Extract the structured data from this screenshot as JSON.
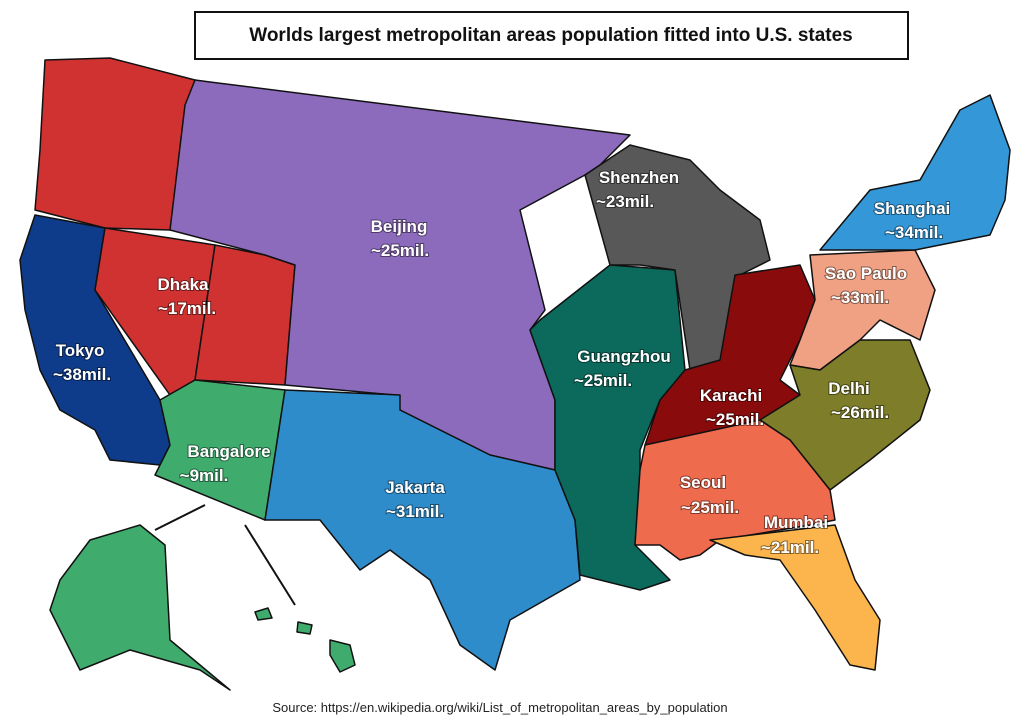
{
  "title": "Worlds largest metropolitan areas population fitted into U.S. states",
  "source": "Source: https://en.wikipedia.org/wiki/List_of_metropolitan_areas_by_population",
  "regions": [
    {
      "city": "Tokyo",
      "population": "~38mil.",
      "color": "#0e3b8a"
    },
    {
      "city": "Dhaka",
      "population": "~17mil.",
      "color": "#d03232"
    },
    {
      "city": "Bangalore",
      "population": "~9mil.",
      "color": "#3fac6e"
    },
    {
      "city": "Beijing",
      "population": "~25mil.",
      "color": "#8c6bbd"
    },
    {
      "city": "Jakarta",
      "population": "~31mil.",
      "color": "#2f8ccb"
    },
    {
      "city": "Guangzhou",
      "population": "~25mil.",
      "color": "#0b6a5c"
    },
    {
      "city": "Shenzhen",
      "population": "~23mil.",
      "color": "#585858"
    },
    {
      "city": "Karachi",
      "population": "~25mil.",
      "color": "#8a0b0b"
    },
    {
      "city": "Sao Paulo",
      "population": "~33mil.",
      "color": "#f0a083"
    },
    {
      "city": "Shanghai",
      "population": "~34mil.",
      "color": "#3498d8"
    },
    {
      "city": "Delhi",
      "population": "~26mil.",
      "color": "#7e7d2a"
    },
    {
      "city": "Seoul",
      "population": "~25mil.",
      "color": "#ef6b4e"
    },
    {
      "city": "Mumbai",
      "population": "~21mil.",
      "color": "#fbb54c"
    }
  ]
}
